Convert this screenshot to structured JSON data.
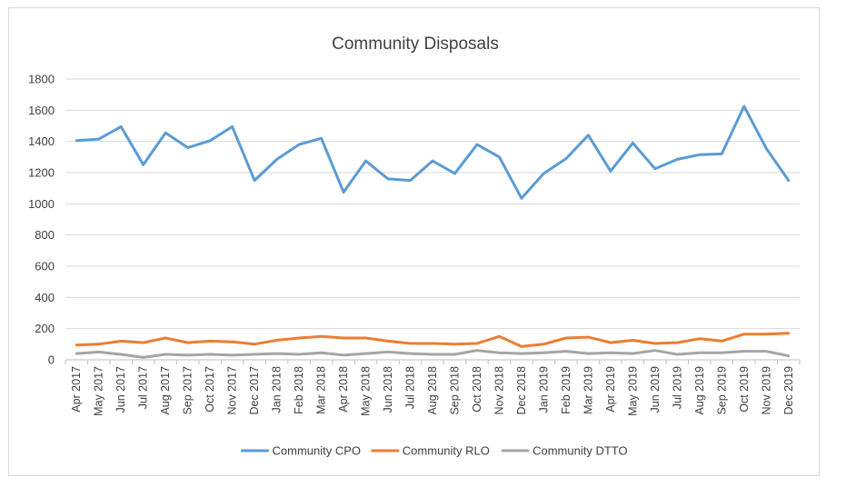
{
  "chart_data": {
    "type": "line",
    "title": "Community Disposals",
    "xlabel": "",
    "ylabel": "",
    "ylim": [
      0,
      1800
    ],
    "yticks": [
      0,
      200,
      400,
      600,
      800,
      1000,
      1200,
      1400,
      1600,
      1800
    ],
    "grid": "horizontal",
    "legend_position": "bottom",
    "categories": [
      "Apr 2017",
      "May 2017",
      "Jun 2017",
      "Jul 2017",
      "Aug 2017",
      "Sep 2017",
      "Oct 2017",
      "Nov 2017",
      "Dec 2017",
      "Jan 2018",
      "Feb 2018",
      "Mar 2018",
      "Apr 2018",
      "May 2018",
      "Jun 2018",
      "Jul 2018",
      "Aug 2018",
      "Sep 2018",
      "Oct 2018",
      "Nov 2018",
      "Dec 2018",
      "Jan 2019",
      "Feb 2019",
      "Mar 2019",
      "Apr 2019",
      "May 2019",
      "Jun 2019",
      "Jul 2019",
      "Aug 2019",
      "Sep 2019",
      "Oct 2019",
      "Nov 2019",
      "Dec 2019"
    ],
    "series": [
      {
        "name": "Community CPO",
        "color": "#5b9bd5",
        "values": [
          1405,
          1415,
          1495,
          1250,
          1455,
          1360,
          1405,
          1495,
          1150,
          1285,
          1380,
          1420,
          1075,
          1275,
          1160,
          1150,
          1275,
          1195,
          1380,
          1300,
          1035,
          1195,
          1290,
          1440,
          1210,
          1390,
          1225,
          1285,
          1315,
          1320,
          1625,
          1355,
          1150
        ]
      },
      {
        "name": "Community RLO",
        "color": "#ed7d31",
        "values": [
          95,
          100,
          120,
          110,
          140,
          110,
          120,
          115,
          100,
          125,
          140,
          150,
          140,
          140,
          120,
          105,
          105,
          100,
          105,
          150,
          85,
          100,
          140,
          145,
          110,
          125,
          105,
          110,
          135,
          120,
          165,
          165,
          170
        ]
      },
      {
        "name": "Community DTTO",
        "color": "#a5a5a5",
        "values": [
          40,
          50,
          35,
          15,
          35,
          30,
          35,
          30,
          35,
          40,
          35,
          45,
          30,
          40,
          50,
          40,
          35,
          35,
          60,
          45,
          40,
          45,
          55,
          40,
          45,
          40,
          60,
          35,
          45,
          45,
          55,
          55,
          25
        ]
      }
    ]
  }
}
